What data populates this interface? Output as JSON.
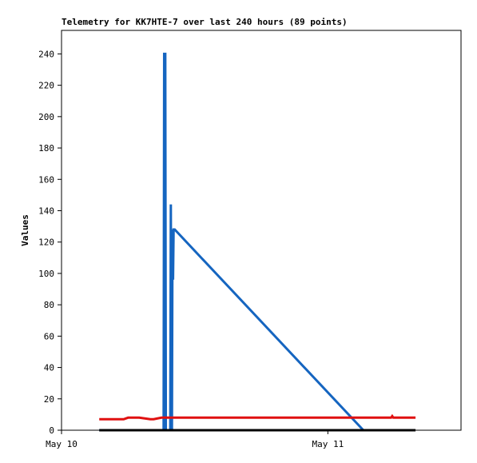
{
  "chart_data": {
    "type": "line",
    "title": "Telemetry for KK7HTE-7 over last 240 hours (89 points)",
    "y_label": "Values",
    "xlim": [
      0,
      36
    ],
    "xticks": [
      {
        "value": 0,
        "label": "May 10"
      },
      {
        "value": 24,
        "label": "May 11"
      }
    ],
    "ylim": [
      0,
      255
    ],
    "yticks": [
      0,
      20,
      40,
      60,
      80,
      100,
      120,
      140,
      160,
      180,
      200,
      220,
      240
    ],
    "series": [
      {
        "color": "#1565c0",
        "x": [
          3.4,
          9.2,
          9.25,
          9.35,
          9.4,
          9.8,
          9.85,
          9.9,
          9.95,
          10.0,
          10.05,
          10.1,
          10.2,
          27.2
        ],
        "values": [
          0,
          0,
          240,
          240,
          0,
          0,
          144,
          0,
          0,
          128,
          96,
          128,
          128,
          0
        ]
      },
      {
        "color": "#e01010",
        "x": [
          3.4,
          5.6,
          6.0,
          7.0,
          8.0,
          8.3,
          9.0,
          20,
          29.7,
          29.8,
          29.9,
          31.9
        ],
        "values": [
          7,
          7,
          8,
          8,
          7,
          7,
          8,
          8,
          8,
          9,
          8,
          8
        ]
      },
      {
        "color": "#000000",
        "x": [
          3.4,
          31.9
        ],
        "values": [
          0,
          0
        ]
      }
    ]
  }
}
